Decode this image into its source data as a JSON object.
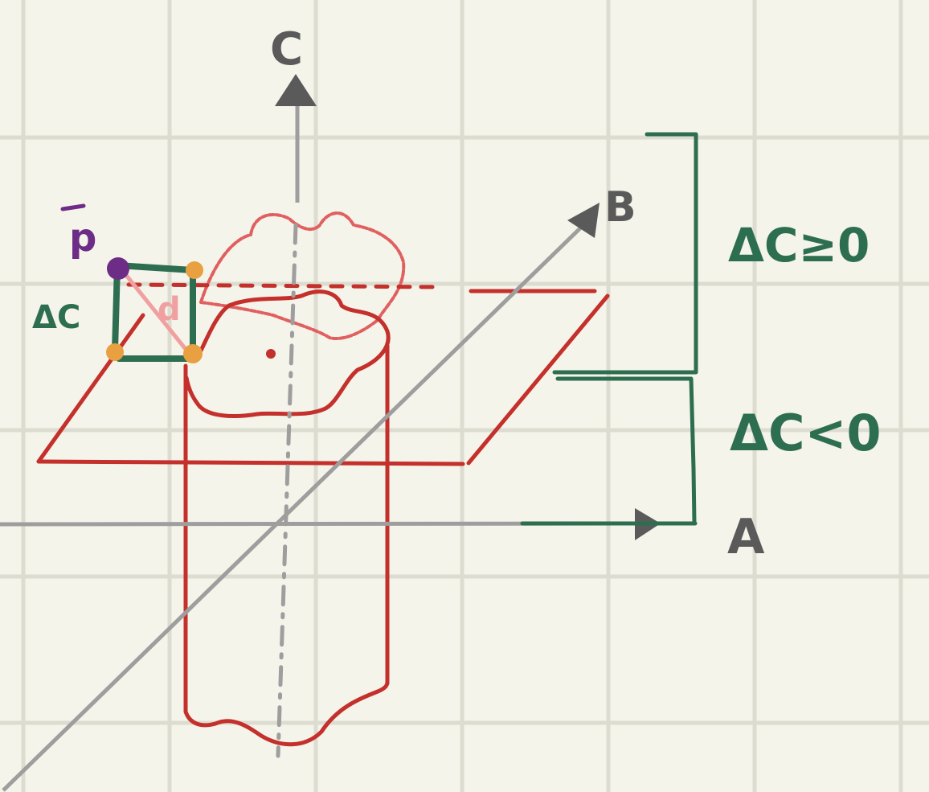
{
  "diagram": {
    "axis_labels": {
      "a": "A",
      "b": "B",
      "c": "C"
    },
    "point_label": "p",
    "distance_label": "d",
    "delta_label": "ΔC",
    "region_upper_label": "ΔC≥0",
    "region_lower_label": "ΔC<0"
  },
  "colors": {
    "background": "#f5f4ea",
    "grid": "#dcdcd0",
    "axis": "#9e9e9e",
    "axis_label": "#5a5a5a",
    "plane": "#c4302b",
    "cloud": "#e06060",
    "green": "#2e6e50",
    "purple": "#6d2c86",
    "orange": "#e8a040",
    "pink": "#f0a0a0"
  }
}
